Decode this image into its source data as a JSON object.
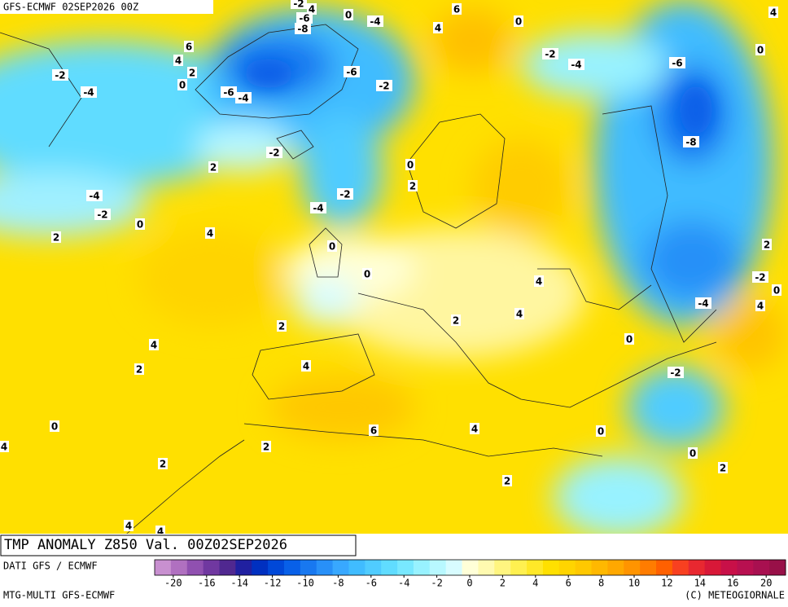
{
  "header": "GFS-ECMWF 02SEP2026 00Z",
  "title": "TMP ANOMALY Z850 Val. 00Z02SEP2026",
  "source": "DATI GFS / ECMWF",
  "model": "MTG-MULTI GFS-ECMWF",
  "credit": "(C) METEOGIORNALE",
  "colorbar": {
    "colors": [
      "#c890d0",
      "#b070c0",
      "#9050b0",
      "#7038a0",
      "#502890",
      "#2020a0",
      "#0030c0",
      "#0048d8",
      "#0860e8",
      "#1878f0",
      "#2890f8",
      "#38a8ff",
      "#40bcff",
      "#50ccff",
      "#60dcff",
      "#78e8ff",
      "#98f2ff",
      "#b8f8ff",
      "#d8fcff",
      "#ffffd8",
      "#fffab0",
      "#fff580",
      "#fff050",
      "#ffe828",
      "#ffe000",
      "#ffd400",
      "#ffc800",
      "#ffb800",
      "#ffa800",
      "#ff9400",
      "#ff7c00",
      "#ff6000",
      "#f84020",
      "#e82830",
      "#d81838",
      "#c81048",
      "#b81050",
      "#a81050",
      "#981048"
    ],
    "ticks": [
      -20,
      -16,
      -14,
      -12,
      -10,
      -8,
      -6,
      -4,
      -2,
      0,
      2,
      4,
      6,
      8,
      10,
      12,
      14,
      16,
      20
    ]
  },
  "contour_labels": [
    -2,
    4,
    -6,
    -8,
    0,
    -4,
    4,
    6,
    0,
    4,
    6,
    4,
    2,
    0,
    -2,
    -4,
    -6,
    -4,
    -6,
    -2,
    -2,
    -4,
    -6,
    0,
    -8,
    -2,
    2,
    0,
    2,
    -2,
    -4,
    -2,
    -4,
    0,
    2,
    4,
    0,
    2,
    0,
    -2,
    0,
    4,
    -4,
    4,
    2,
    4,
    2,
    0,
    4,
    2,
    4,
    -2,
    0,
    6,
    4,
    0,
    4,
    2,
    0,
    2,
    2,
    2,
    4,
    4
  ]
}
